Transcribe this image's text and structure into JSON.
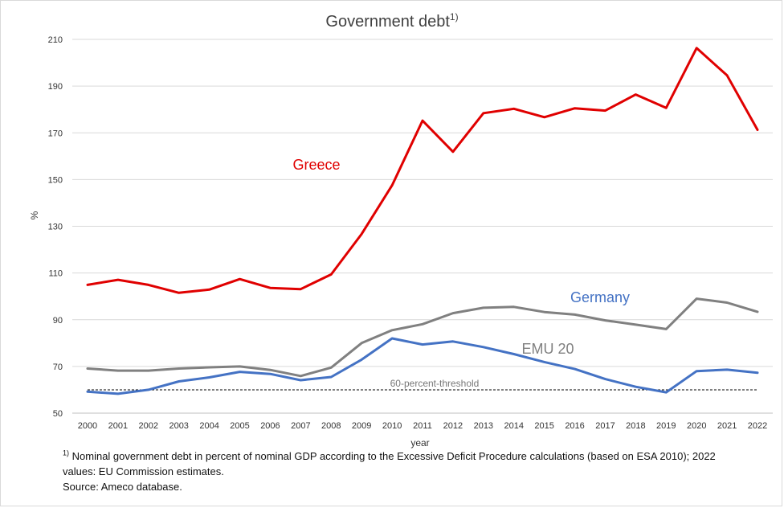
{
  "chart_data": {
    "type": "line",
    "title": "Government debt",
    "title_superscript": "1)",
    "xlabel": "year",
    "ylabel": "%",
    "ylim": [
      50,
      210
    ],
    "yticks": [
      "50",
      "70",
      "90",
      "110",
      "130",
      "150",
      "170",
      "190",
      "210"
    ],
    "grid": "horizontal",
    "x": [
      "2000",
      "2001",
      "2002",
      "2003",
      "2004",
      "2005",
      "2006",
      "2007",
      "2008",
      "2009",
      "2010",
      "2011",
      "2012",
      "2013",
      "2014",
      "2015",
      "2016",
      "2017",
      "2018",
      "2019",
      "2020",
      "2021",
      "2022"
    ],
    "series": [
      {
        "name": "Greece",
        "color": "#e00000",
        "values": [
          104.9,
          107.1,
          104.9,
          101.5,
          102.9,
          107.4,
          103.6,
          103.1,
          109.4,
          126.7,
          147.5,
          175.2,
          161.9,
          178.4,
          180.3,
          176.7,
          180.5,
          179.5,
          186.4,
          180.7,
          206.3,
          194.6,
          171.3
        ]
      },
      {
        "name": "Germany",
        "color": "#4472c4",
        "values": [
          59.2,
          58.3,
          60.0,
          63.6,
          65.3,
          67.7,
          66.8,
          64.1,
          65.5,
          72.9,
          82.0,
          79.4,
          80.7,
          78.3,
          75.3,
          71.9,
          68.9,
          64.6,
          61.3,
          58.9,
          68.0,
          68.6,
          67.3
        ]
      },
      {
        "name": "EMU 20",
        "color": "#808080",
        "values": [
          69.1,
          68.2,
          68.2,
          69.1,
          69.6,
          70.0,
          68.5,
          65.9,
          69.5,
          80.0,
          85.5,
          88.1,
          92.8,
          95.1,
          95.5,
          93.3,
          92.2,
          89.7,
          87.9,
          86.0,
          99.0,
          97.3,
          93.4
        ]
      }
    ],
    "series_labels": [
      {
        "text": "Greece",
        "color": "#e00000"
      },
      {
        "text": "Germany",
        "color": "#4472c4"
      },
      {
        "text": "EMU 20",
        "color": "#808080"
      }
    ],
    "threshold": {
      "value": 60,
      "label": "60-percent-threshold",
      "style": "dashed",
      "color": "#000000"
    }
  },
  "footnote": {
    "marker": "1)",
    "line1": "Nominal government debt in percent of nominal GDP according to the Excessive Deficit Procedure calculations (based on ESA 2010);  2022",
    "line2": "values: EU Commission estimates.",
    "source": "Source: Ameco database."
  }
}
